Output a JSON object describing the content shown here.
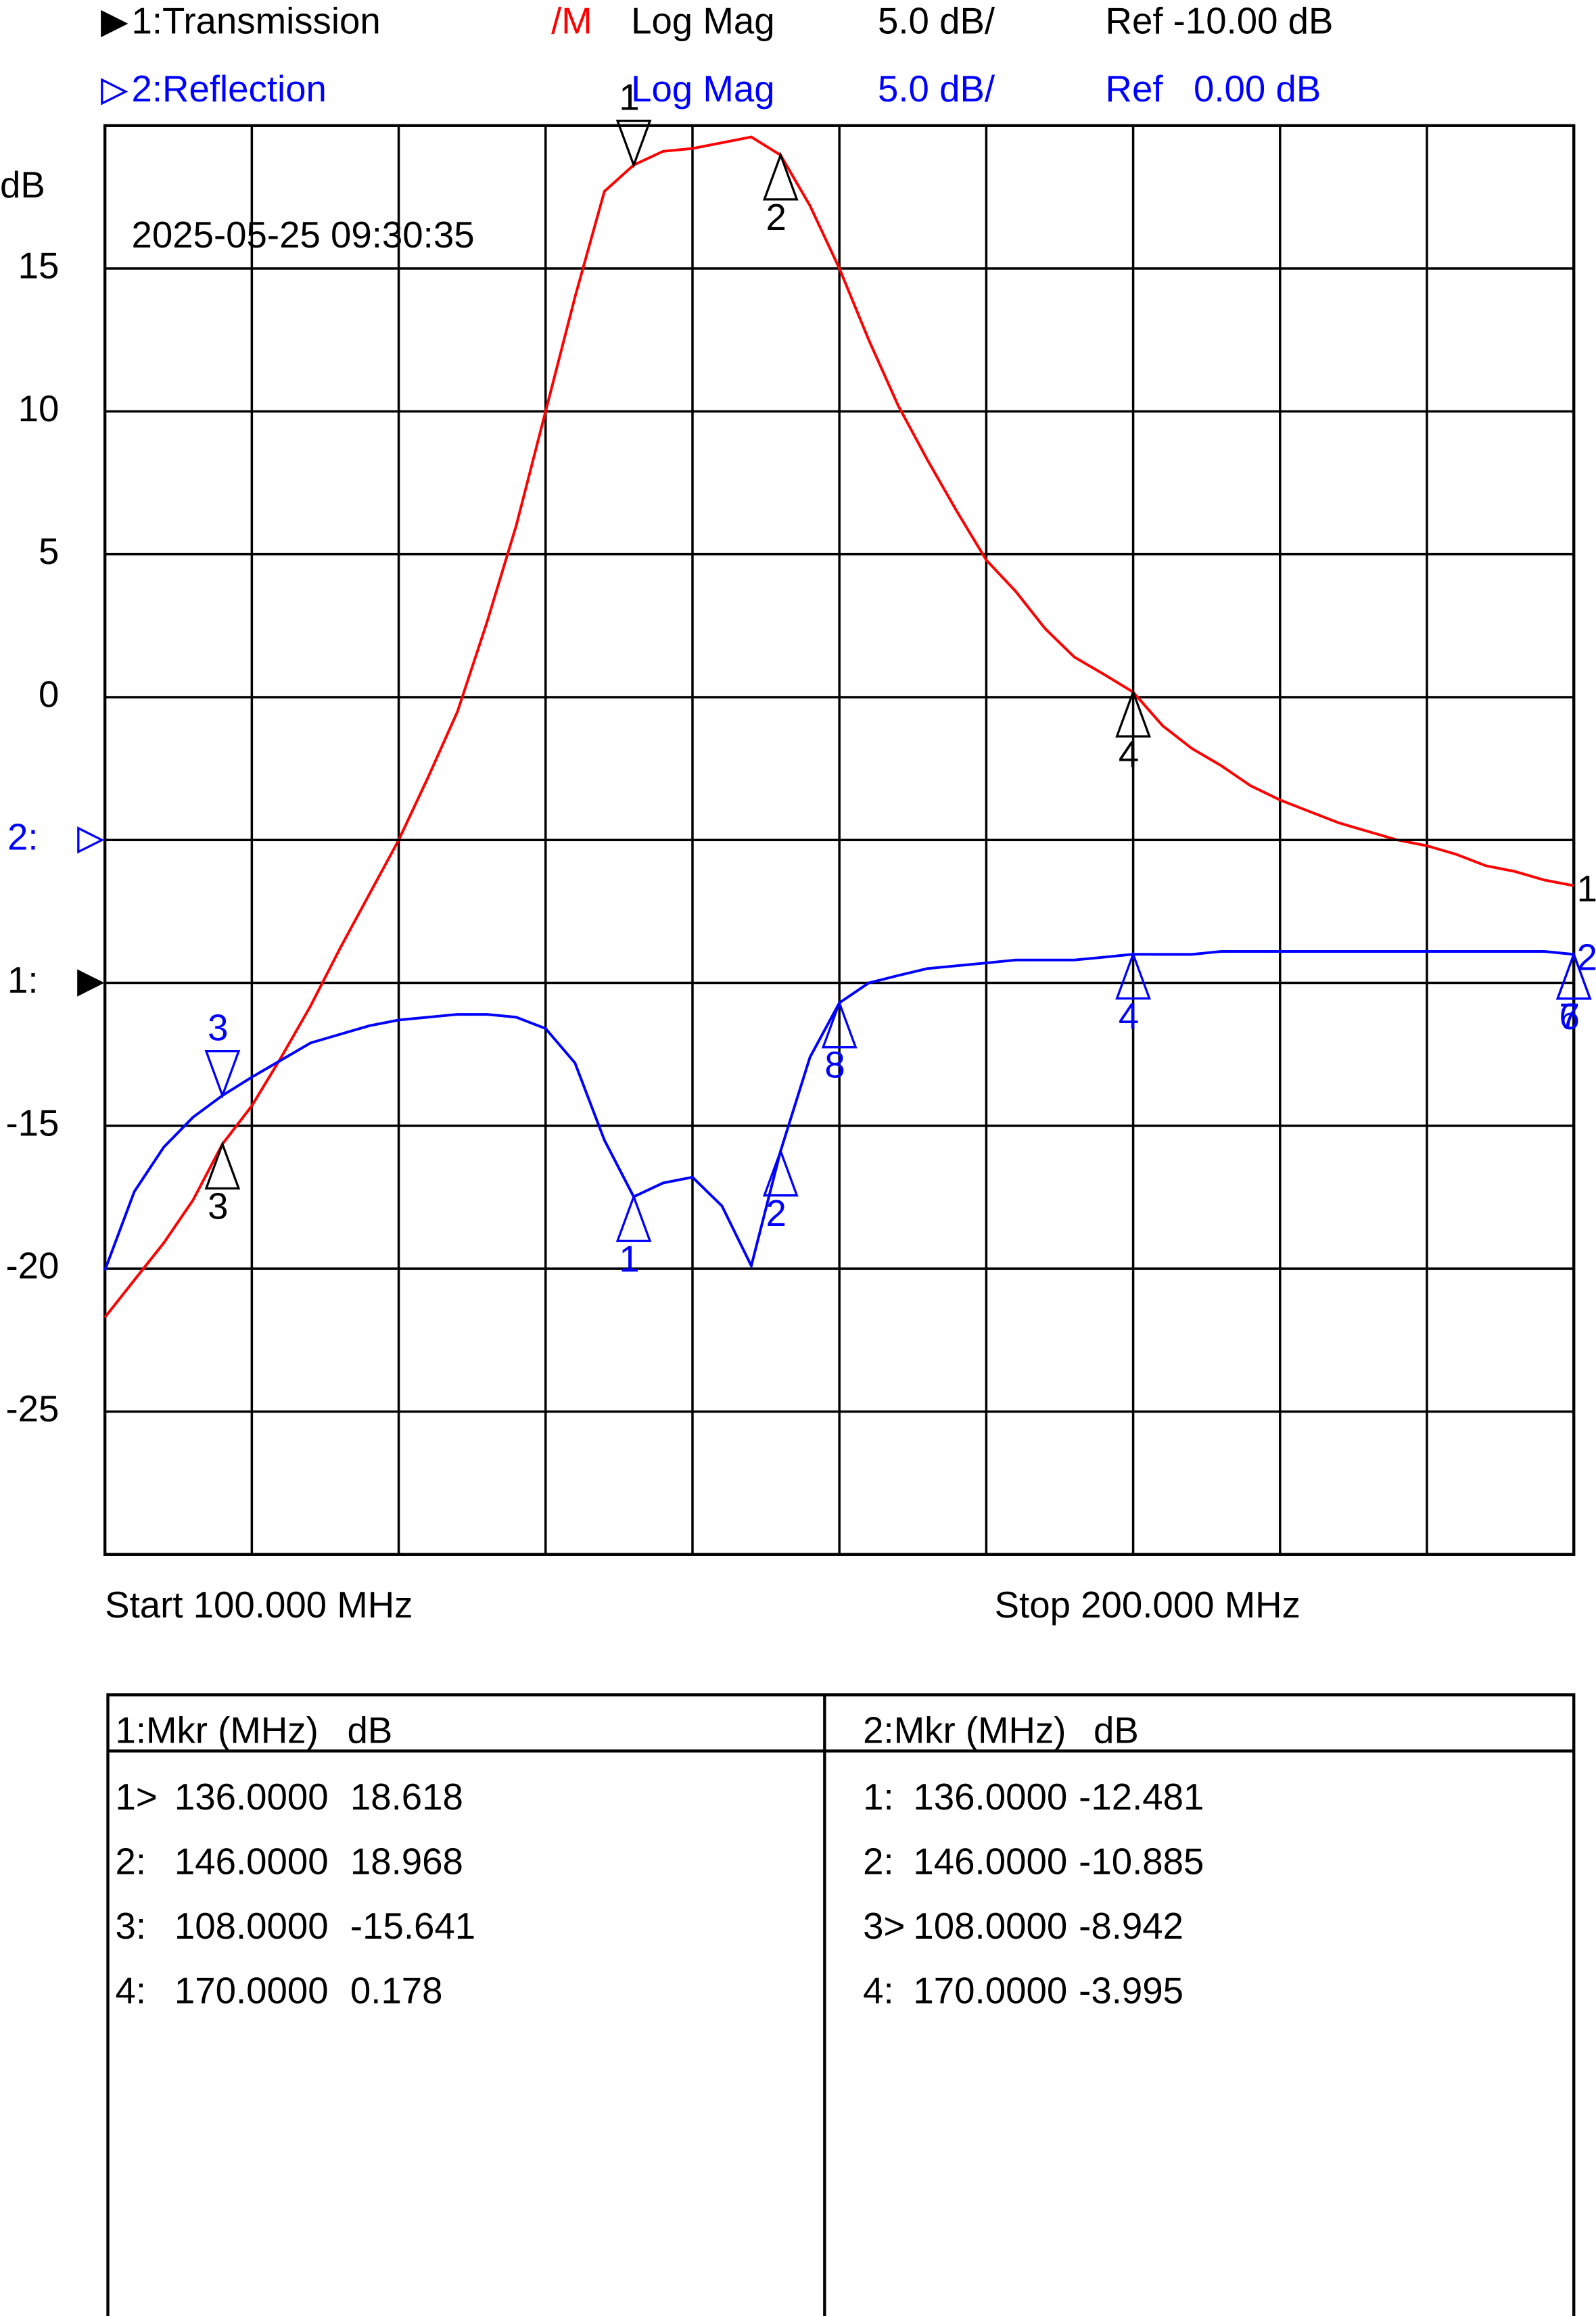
{
  "chart_data": {
    "type": "line",
    "timestamp": "2025-05-25 09:30:35",
    "y_label": "dB",
    "start_label": "Start 100.000 MHz",
    "stop_label": "Stop 200.000 MHz",
    "xlim": [
      100,
      200
    ],
    "xticks": [
      110,
      120,
      130,
      140,
      150,
      160,
      170,
      180,
      190
    ],
    "ylim": [
      -30,
      20
    ],
    "yticks": [
      15,
      10,
      5,
      0,
      -15,
      -20,
      -25
    ],
    "y2lim": [
      -25,
      25
    ],
    "grid": true,
    "x": [
      100,
      102,
      104,
      106,
      108,
      110,
      112,
      114,
      116,
      118,
      120,
      122,
      124,
      126,
      128,
      130,
      132,
      134,
      136,
      138,
      140,
      142,
      144,
      146,
      148,
      150,
      152,
      154,
      156,
      158,
      160,
      162,
      164,
      166,
      168,
      170,
      172,
      174,
      176,
      178,
      180,
      182,
      184,
      186,
      188,
      190,
      192,
      194,
      196,
      198,
      200
    ],
    "series": [
      {
        "name": "1:Transmission",
        "color": "#ff0000",
        "label_color": "#000000",
        "flag": "/M",
        "format": "Log Mag",
        "scale": "5.0 dB/",
        "ref": "Ref -10.00 dB",
        "ref_marker": {
          "value": -10,
          "label": "1:"
        },
        "end_label": "1",
        "values": [
          -21.7,
          -20.4,
          -19.1,
          -17.6,
          -15.641,
          -14.3,
          -12.6,
          -10.8,
          -8.8,
          -6.9,
          -5,
          -2.8,
          -0.5,
          2.6,
          6,
          10,
          14,
          17.7,
          18.618,
          19.1,
          19.2,
          19.4,
          19.6,
          18.968,
          17.2,
          15,
          12.5,
          10.2,
          8.3,
          6.5,
          4.8,
          3.7,
          2.4,
          1.4,
          0.8,
          0.178,
          -1,
          -1.8,
          -2.4,
          -3.1,
          -3.6,
          -4,
          -4.4,
          -4.7,
          -5,
          -5.2,
          -5.5,
          -5.9,
          -6.1,
          -6.4,
          -6.6
        ],
        "markers": [
          {
            "label": "1",
            "x": 136,
            "value": 18.618,
            "active": true
          },
          {
            "label": "2",
            "x": 146,
            "value": 18.968
          },
          {
            "label": "3",
            "x": 108,
            "value": -15.641
          },
          {
            "label": "4",
            "x": 170,
            "value": 0.178
          }
        ]
      },
      {
        "name": "2:Reflection",
        "color": "#0000ff",
        "label_color": "#0000ff",
        "axis": "y2",
        "format": "Log Mag",
        "scale": "5.0 dB/",
        "ref": "Ref   0.00 dB",
        "ref_marker": {
          "value": 0,
          "label": "2:"
        },
        "end_label": "2",
        "values": [
          -15.05,
          -12.3,
          -10.75,
          -9.7,
          -8.942,
          -8.3,
          -7.7,
          -7.1,
          -6.8,
          -6.5,
          -6.3,
          -6.2,
          -6.1,
          -6.1,
          -6.2,
          -6.6,
          -7.8,
          -10.5,
          -12.481,
          -12,
          -11.8,
          -12.8,
          -14.9,
          -10.885,
          -7.6,
          -5.7,
          -5,
          -4.74,
          -4.5,
          -4.4,
          -4.3,
          -4.2,
          -4.2,
          -4.2,
          -4.1,
          -3.995,
          -4,
          -4,
          -3.9,
          -3.9,
          -3.9,
          -3.9,
          -3.9,
          -3.9,
          -3.9,
          -3.9,
          -3.9,
          -3.9,
          -3.9,
          -3.9,
          -4
        ],
        "markers": [
          {
            "label": "1",
            "x": 136,
            "value": -12.481
          },
          {
            "label": "2",
            "x": 146,
            "value": -10.885
          },
          {
            "label": "3",
            "x": 108,
            "value": -8.942,
            "active": true
          },
          {
            "label": "4",
            "x": 170,
            "value": -3.995
          },
          {
            "label": "8",
            "x": 150,
            "value": -5.7
          },
          {
            "label": "7",
            "x": 200,
            "value": -4
          },
          {
            "label": "6",
            "x": 200,
            "value": -4
          }
        ]
      }
    ],
    "marker_tables": [
      {
        "header": [
          "1:Mkr (MHz)",
          "dB"
        ],
        "rows": [
          [
            "1>",
            "136.0000",
            "18.618"
          ],
          [
            "2:",
            "146.0000",
            "18.968"
          ],
          [
            "3:",
            "108.0000",
            "-15.641"
          ],
          [
            "4:",
            "170.0000",
            "0.178"
          ]
        ]
      },
      {
        "header": [
          "2:Mkr (MHz)",
          "dB"
        ],
        "rows": [
          [
            "1:",
            "136.0000",
            "-12.481"
          ],
          [
            "2:",
            "146.0000",
            "-10.885"
          ],
          [
            "3>",
            "108.0000",
            "-8.942"
          ],
          [
            "4:",
            "170.0000",
            "-3.995"
          ]
        ]
      }
    ]
  }
}
